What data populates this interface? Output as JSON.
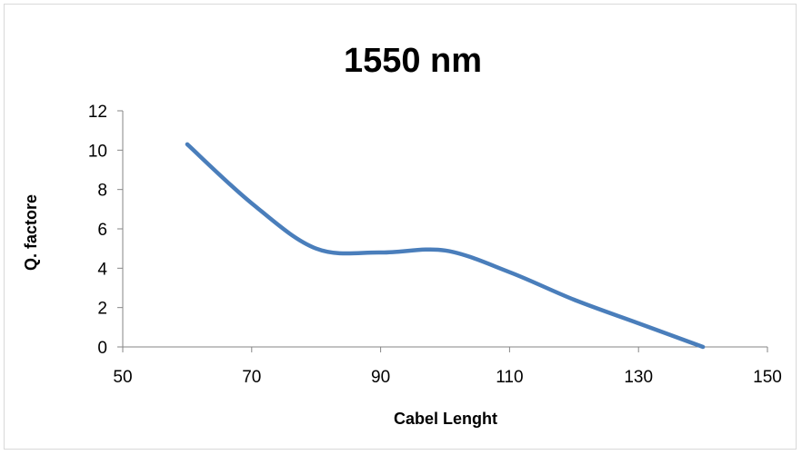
{
  "chart_data": {
    "type": "line",
    "title": "1550 nm",
    "xlabel": "Cabel Lenght",
    "ylabel": "Q. factore",
    "xlim": [
      50,
      150
    ],
    "ylim": [
      0,
      12
    ],
    "xticks": [
      50,
      70,
      90,
      110,
      130,
      150
    ],
    "yticks": [
      0,
      2,
      4,
      6,
      8,
      10,
      12
    ],
    "grid": false,
    "smooth": true,
    "line_color": "#4a7ebb",
    "series": [
      {
        "x": [
          60,
          70,
          80,
          90,
          100,
          110,
          120,
          130,
          140
        ],
        "values": [
          10.3,
          7.3,
          5.0,
          4.8,
          4.9,
          3.8,
          2.4,
          1.2,
          0.0
        ]
      }
    ]
  }
}
